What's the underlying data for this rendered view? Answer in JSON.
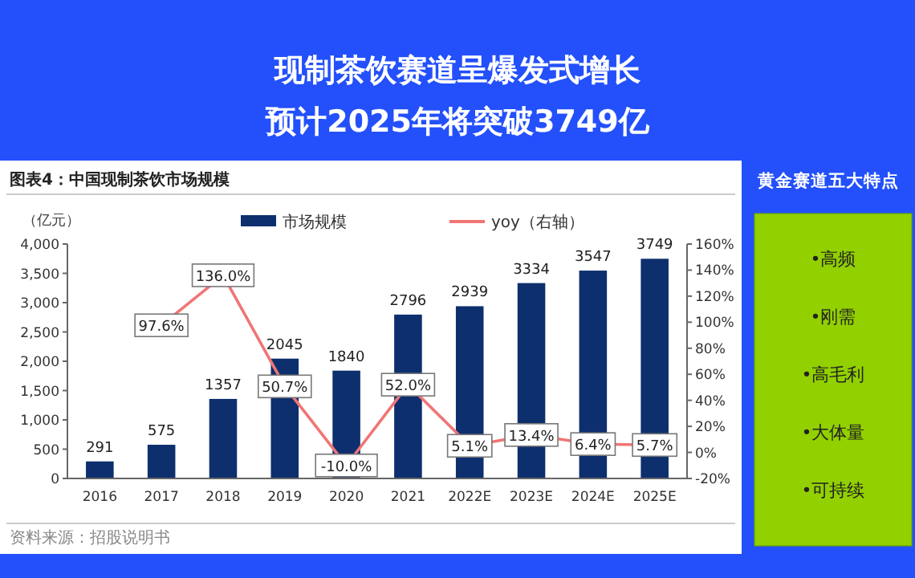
{
  "chart_data": [
    {
      "type": "bar",
      "title": "现制茶饮赛道呈爆发式增长",
      "subtitle": "预计2025年将突破3749亿",
      "ylabel": "（亿元）",
      "annotations": [
        "图表4：中国现制茶饮市场规模",
        "资料来源：招股说明书"
      ],
      "categories": [
        "2016",
        "2017",
        "2018",
        "2019",
        "2020",
        "2021",
        "2022E",
        "2023E",
        "2024E",
        "2025E"
      ],
      "series": [
        {
          "name": "市场规模",
          "type": "bar",
          "color": "#0d2f6e",
          "values": [
            291,
            575,
            1357,
            2045,
            1840,
            2796,
            2939,
            3334,
            3547,
            3749
          ],
          "value_labels": [
            "291",
            "575",
            "1357",
            "2045",
            "1840",
            "2796",
            "2939",
            "3334",
            "3547",
            "3749"
          ]
        },
        {
          "name": "yoy（右轴）",
          "type": "line",
          "axis": "y2",
          "marker": "square",
          "color": "#f07575",
          "values": [
            null,
            97.6,
            136.0,
            50.7,
            -10.0,
            52.0,
            5.1,
            13.4,
            6.4,
            5.7
          ],
          "value_labels": [
            null,
            "97.6%",
            "136.0%",
            "50.7%",
            "-10.0%",
            "52.0%",
            "5.1%",
            "13.4%",
            "6.4%",
            "5.7%"
          ]
        }
      ],
      "ylim": [
        0,
        4000
      ],
      "yticks": [
        {
          "value": 0,
          "label": "0"
        },
        {
          "value": 500,
          "label": "500"
        },
        {
          "value": 1000,
          "label": "1,000"
        },
        {
          "value": 1500,
          "label": "1,500"
        },
        {
          "value": 2000,
          "label": "2,000"
        },
        {
          "value": 2500,
          "label": "2,500"
        },
        {
          "value": 3000,
          "label": "3,000"
        },
        {
          "value": 3500,
          "label": "3,500"
        },
        {
          "value": 4000,
          "label": "4,000"
        }
      ],
      "y2lim": [
        -20,
        160
      ],
      "y2ticks": [
        {
          "value": -20,
          "label": "-20%"
        },
        {
          "value": 0,
          "label": "0%"
        },
        {
          "value": 20,
          "label": "20%"
        },
        {
          "value": 40,
          "label": "40%"
        },
        {
          "value": 60,
          "label": "60%"
        },
        {
          "value": 80,
          "label": "80%"
        },
        {
          "value": 100,
          "label": "100%"
        },
        {
          "value": 120,
          "label": "120%"
        },
        {
          "value": 140,
          "label": "140%"
        },
        {
          "value": 160,
          "label": "160%"
        }
      ],
      "legend": "top",
      "grid": false
    },
    {
      "type": "other",
      "title": "黄金赛道五大特点",
      "annotations": [
        "•高频",
        "•刚需",
        "•高毛利",
        "•大体量",
        "•可持续"
      ]
    }
  ]
}
